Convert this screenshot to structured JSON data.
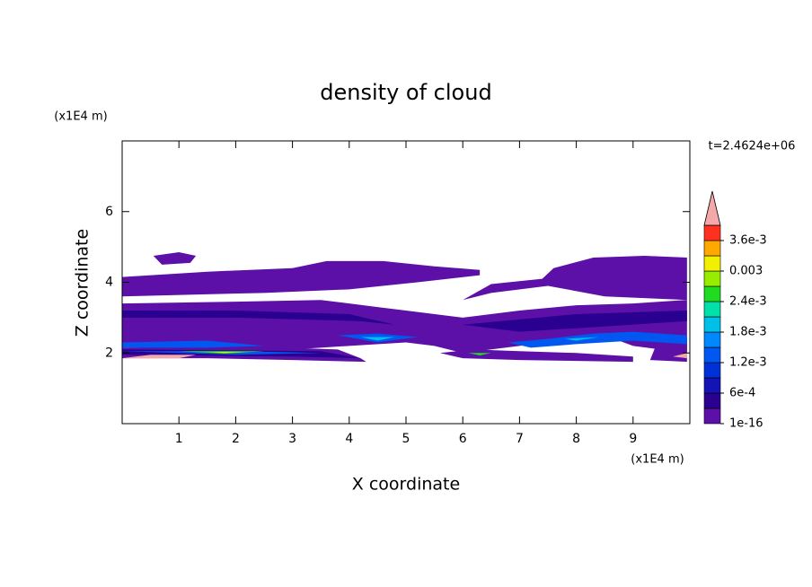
{
  "chart_data": {
    "type": "contour",
    "title": "density of cloud",
    "x_label": "X coordinate",
    "y_label": "Z coordinate",
    "x_unit": "(x1E4 m)",
    "y_unit": "(x1E4 m)",
    "time_label": "t=2.4624e+06",
    "xlim": [
      0,
      10
    ],
    "ylim": [
      0,
      8
    ],
    "xticks": [
      1,
      2,
      3,
      4,
      5,
      6,
      7,
      8,
      9
    ],
    "yticks": [
      2,
      4,
      6
    ],
    "colorbar": {
      "levels": [
        1e-16,
        0.0003,
        0.0006,
        0.0009,
        0.0012,
        0.0015,
        0.0018,
        0.0021,
        0.0024,
        0.0027,
        0.003,
        0.0033,
        0.0036,
        0.0039
      ],
      "colors": [
        "#5c10a8",
        "#2a0090",
        "#1414b4",
        "#0030d8",
        "#0058f0",
        "#0088ff",
        "#00c0e8",
        "#00e0a8",
        "#20dc20",
        "#98ec00",
        "#f0f000",
        "#ffa800",
        "#ff3020"
      ],
      "extend_color": "#f4a8a8",
      "ticks": [
        {
          "value": 1e-16,
          "label": "1e-16"
        },
        {
          "value": 0.0006,
          "label": "6e-4"
        },
        {
          "value": 0.0012,
          "label": "1.2e-3"
        },
        {
          "value": 0.0018,
          "label": "1.8e-3"
        },
        {
          "value": 0.0024,
          "label": "2.4e-3"
        },
        0.003,
        {
          "value": 0.0036,
          "label": "3.6e-3"
        }
      ]
    },
    "regions": [
      {
        "value": 1e-16,
        "points": [
          [
            0.55,
            4.75
          ],
          [
            1.0,
            4.85
          ],
          [
            1.3,
            4.75
          ],
          [
            1.2,
            4.55
          ],
          [
            0.7,
            4.5
          ]
        ]
      },
      {
        "value": 1e-16,
        "points": [
          [
            0,
            4.15
          ],
          [
            1.5,
            4.3
          ],
          [
            3,
            4.4
          ],
          [
            3.6,
            4.6
          ],
          [
            4.6,
            4.6
          ],
          [
            5.5,
            4.45
          ],
          [
            6.3,
            4.35
          ],
          [
            6.3,
            4.2
          ],
          [
            5.2,
            4.0
          ],
          [
            4.0,
            3.8
          ],
          [
            2.5,
            3.7
          ],
          [
            0,
            3.6
          ]
        ]
      },
      {
        "value": 1e-16,
        "points": [
          [
            7.6,
            4.4
          ],
          [
            8.3,
            4.7
          ],
          [
            9.2,
            4.75
          ],
          [
            9.95,
            4.7
          ],
          [
            9.95,
            3.5
          ],
          [
            8.5,
            3.6
          ],
          [
            7.5,
            3.9
          ],
          [
            6.5,
            3.7
          ],
          [
            6.0,
            3.5
          ],
          [
            6.5,
            3.95
          ],
          [
            7.4,
            4.1
          ]
        ]
      },
      {
        "value": 1e-16,
        "points": [
          [
            0,
            3.4
          ],
          [
            2,
            3.45
          ],
          [
            3.5,
            3.5
          ],
          [
            4.5,
            3.3
          ],
          [
            5,
            3.2
          ],
          [
            6,
            3.0
          ],
          [
            7,
            3.2
          ],
          [
            8,
            3.35
          ],
          [
            9,
            3.4
          ],
          [
            9.95,
            3.5
          ],
          [
            9.95,
            2.0
          ],
          [
            9,
            2.2
          ],
          [
            8.5,
            2.5
          ],
          [
            7,
            2.2
          ],
          [
            6,
            2.0
          ],
          [
            5.5,
            2.2
          ],
          [
            5,
            2.3
          ],
          [
            4,
            2.2
          ],
          [
            3,
            2.1
          ],
          [
            2,
            2.2
          ],
          [
            0,
            2.3
          ]
        ]
      },
      {
        "value": 1e-16,
        "points": [
          [
            0,
            2.15
          ],
          [
            2,
            2.2
          ],
          [
            3.8,
            2.1
          ],
          [
            4.2,
            1.85
          ],
          [
            4.3,
            1.75
          ],
          [
            3.0,
            1.8
          ],
          [
            1.5,
            1.85
          ],
          [
            0,
            1.85
          ]
        ]
      },
      {
        "value": 1e-16,
        "points": [
          [
            5.6,
            2.0
          ],
          [
            6.2,
            2.1
          ],
          [
            7,
            2.05
          ],
          [
            8,
            2.0
          ],
          [
            9,
            1.9
          ],
          [
            9,
            1.75
          ],
          [
            7,
            1.8
          ],
          [
            6,
            1.85
          ]
        ]
      },
      {
        "value": 1e-16,
        "points": [
          [
            9.4,
            2.2
          ],
          [
            9.95,
            2.4
          ],
          [
            9.95,
            1.75
          ],
          [
            9.3,
            1.8
          ]
        ]
      },
      {
        "value": 0.0003,
        "points": [
          [
            0,
            3.2
          ],
          [
            2,
            3.2
          ],
          [
            4,
            3.1
          ],
          [
            4.8,
            2.8
          ],
          [
            4.2,
            2.9
          ],
          [
            2,
            3.0
          ],
          [
            0,
            3.0
          ]
        ]
      },
      {
        "value": 0.0003,
        "points": [
          [
            6,
            2.8
          ],
          [
            8,
            3.1
          ],
          [
            9.95,
            3.2
          ],
          [
            9.95,
            2.9
          ],
          [
            8,
            2.7
          ],
          [
            7,
            2.6
          ]
        ]
      },
      {
        "value": 0.0003,
        "points": [
          [
            0,
            2.1
          ],
          [
            3.5,
            2.05
          ],
          [
            4.2,
            1.85
          ],
          [
            3,
            1.9
          ],
          [
            0,
            1.95
          ]
        ]
      },
      {
        "value": 0.0012,
        "points": [
          [
            0,
            2.3
          ],
          [
            1.5,
            2.35
          ],
          [
            2.5,
            2.2
          ],
          [
            1.5,
            2.15
          ],
          [
            0,
            2.15
          ]
        ]
      },
      {
        "value": 0.0012,
        "points": [
          [
            3.8,
            2.5
          ],
          [
            4.5,
            2.55
          ],
          [
            5.2,
            2.45
          ],
          [
            4.5,
            2.3
          ]
        ]
      },
      {
        "value": 0.0012,
        "points": [
          [
            6.8,
            2.3
          ],
          [
            7.5,
            2.4
          ],
          [
            8.3,
            2.55
          ],
          [
            9,
            2.6
          ],
          [
            9.95,
            2.5
          ],
          [
            9.95,
            2.25
          ],
          [
            9,
            2.35
          ],
          [
            8,
            2.25
          ],
          [
            7.2,
            2.15
          ]
        ]
      },
      {
        "value": 0.0012,
        "points": [
          [
            0,
            2.05
          ],
          [
            2,
            2.05
          ],
          [
            3.5,
            2.0
          ],
          [
            2,
            1.95
          ]
        ]
      },
      {
        "value": 0.0018,
        "points": [
          [
            4.2,
            2.45
          ],
          [
            4.8,
            2.45
          ],
          [
            4.5,
            2.35
          ]
        ]
      },
      {
        "value": 0.0018,
        "points": [
          [
            7.8,
            2.4
          ],
          [
            8.4,
            2.45
          ],
          [
            8.0,
            2.35
          ]
        ]
      },
      {
        "value": 0.0024,
        "points": [
          [
            1.0,
            2.05
          ],
          [
            2.5,
            2.05
          ],
          [
            1.8,
            1.98
          ]
        ]
      },
      {
        "value": 0.0024,
        "points": [
          [
            6.1,
            2.0
          ],
          [
            6.5,
            2.0
          ],
          [
            6.3,
            1.93
          ]
        ]
      },
      {
        "value": 0.003,
        "points": [
          [
            1.5,
            2.03
          ],
          [
            2.2,
            2.03
          ],
          [
            1.8,
            2.0
          ]
        ]
      },
      {
        "value": 0.0039,
        "points": [
          [
            0,
            1.85
          ],
          [
            0.5,
            1.95
          ],
          [
            1.3,
            1.95
          ],
          [
            1.0,
            1.85
          ]
        ]
      },
      {
        "value": 0.0039,
        "points": [
          [
            9.7,
            1.9
          ],
          [
            9.95,
            2.0
          ],
          [
            9.95,
            1.85
          ]
        ]
      }
    ]
  }
}
